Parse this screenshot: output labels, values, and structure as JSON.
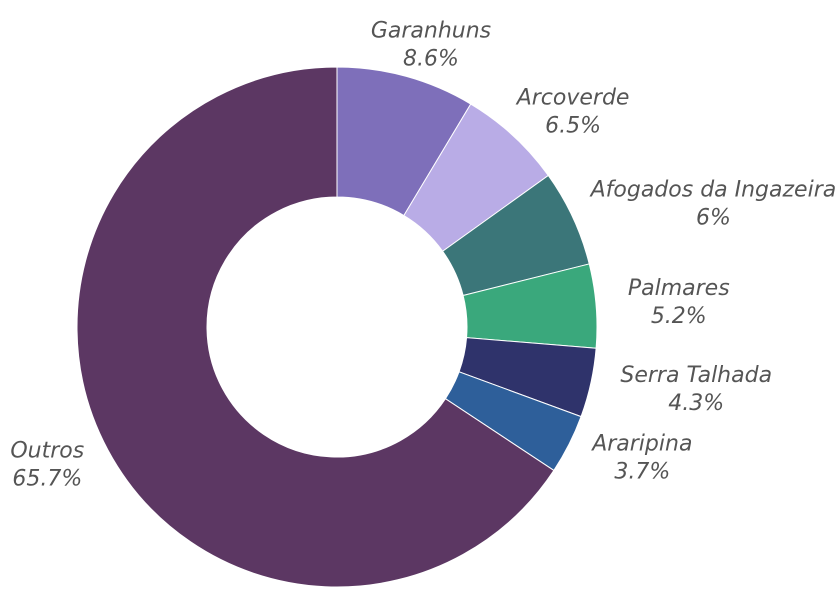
{
  "chart_data": {
    "type": "donut",
    "categories": [
      "Garanhuns",
      "Arcoverde",
      "Afogados da Ingazeira",
      "Palmares",
      "Serra Talhada",
      "Araripina",
      "Outros"
    ],
    "values": [
      8.6,
      6.5,
      6,
      5.2,
      4.3,
      3.7,
      65.7
    ],
    "value_labels": [
      "8.6%",
      "6.5%",
      "6%",
      "5.2%",
      "4.3%",
      "3.7%",
      "65.7%"
    ],
    "colors": [
      "#7e6fba",
      "#b9ace6",
      "#3b7679",
      "#3aa87c",
      "#2f336b",
      "#2e5f9a",
      "#5c3763"
    ]
  }
}
